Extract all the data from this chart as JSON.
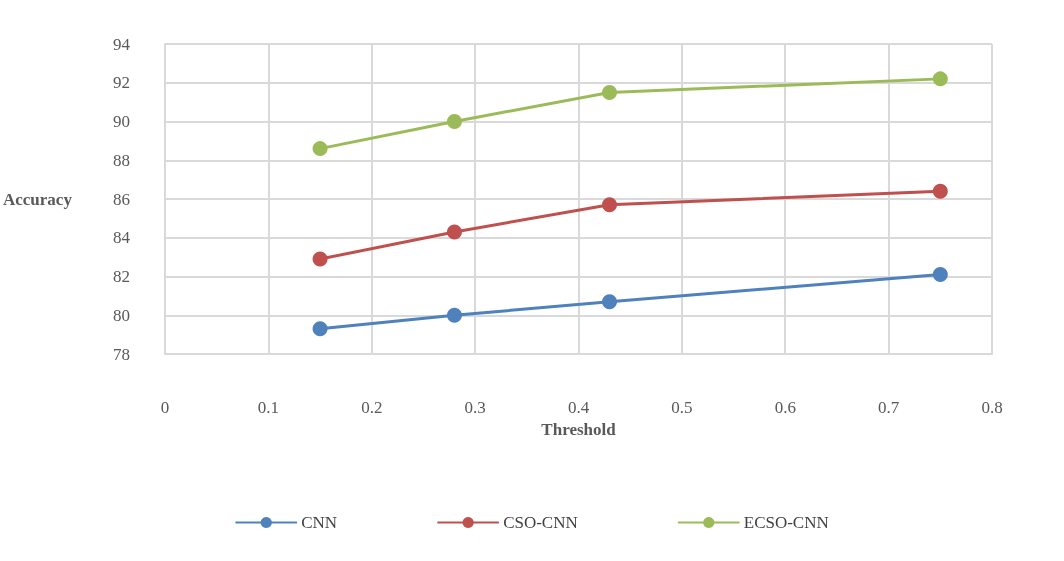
{
  "chart_data": {
    "type": "line",
    "xlabel": "Threshold",
    "ylabel": "Accuracy",
    "x": [
      0.15,
      0.28,
      0.43,
      0.75
    ],
    "series": [
      {
        "name": "CNN",
        "color": "#4f81bd",
        "values": [
          79.3,
          80.0,
          80.7,
          82.1
        ]
      },
      {
        "name": "CSO-CNN",
        "color": "#c0504d",
        "values": [
          82.9,
          84.3,
          85.7,
          86.4
        ]
      },
      {
        "name": "ECSO-CNN",
        "color": "#9bbb59",
        "values": [
          88.6,
          90.0,
          91.5,
          92.2
        ]
      }
    ],
    "xlim": [
      0,
      0.8
    ],
    "xticks": [
      0,
      0.1,
      0.2,
      0.3,
      0.4,
      0.5,
      0.6,
      0.7,
      0.8
    ],
    "ylim": [
      78,
      94
    ],
    "yticks": [
      78,
      80,
      82,
      84,
      86,
      88,
      90,
      92,
      94
    ],
    "grid": true,
    "legend": "bottom",
    "marker": "circle",
    "line_style": "solid"
  }
}
